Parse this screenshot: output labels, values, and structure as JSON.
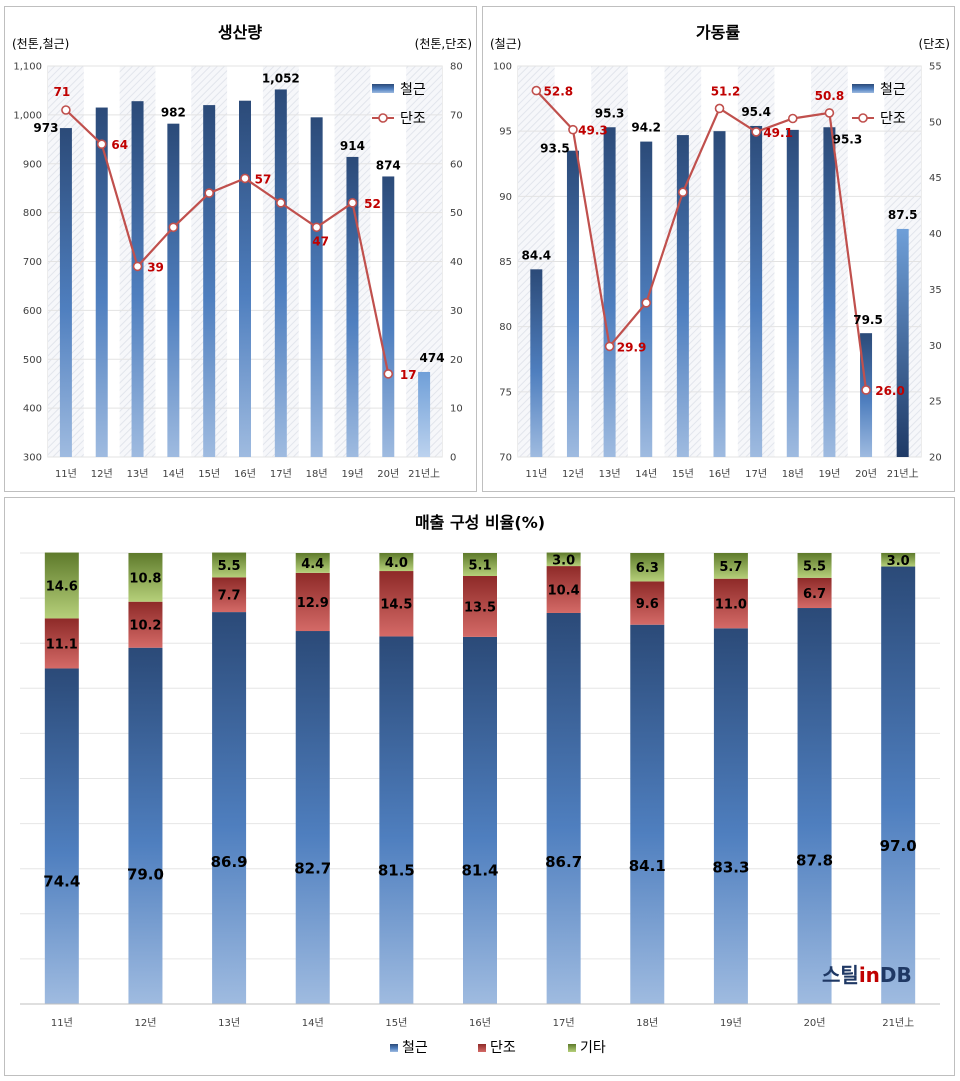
{
  "colors": {
    "steel": "#3d6496",
    "forging": "#c0504d",
    "other": "#9bbb59",
    "line": "#c0504d"
  },
  "chart_data": [
    {
      "type": "bar+line",
      "title": "생산량",
      "ylabel_left": "(천톤,철근)",
      "ylabel_right": "(천톤,단조)",
      "categories": [
        "11년",
        "12년",
        "13년",
        "14년",
        "15년",
        "16년",
        "17년",
        "18년",
        "19년",
        "20년",
        "21년上"
      ],
      "ylim_left": [
        300,
        1100
      ],
      "ylim_right": [
        0,
        80
      ],
      "yticks_left": [
        "300",
        "400",
        "500",
        "600",
        "700",
        "800",
        "900",
        "1,000",
        "1,100"
      ],
      "yticks_right": [
        "0",
        "10",
        "20",
        "30",
        "40",
        "50",
        "60",
        "70",
        "80"
      ],
      "series": [
        {
          "name": "철근",
          "kind": "bar",
          "axis": "left",
          "values": [
            973,
            1015,
            1028,
            982,
            1020,
            1029,
            1052,
            995,
            914,
            874,
            474
          ],
          "labels": [
            "973",
            "",
            "",
            "982",
            "",
            "",
            "1,052",
            "",
            "914",
            "874",
            "474"
          ]
        },
        {
          "name": "단조",
          "kind": "line",
          "axis": "right",
          "values": [
            71,
            64,
            39,
            47,
            54,
            57,
            52,
            47,
            52,
            17,
            null
          ],
          "labels": [
            "71",
            "64",
            "39",
            "",
            "",
            "57",
            "",
            "47",
            "52",
            "17",
            ""
          ]
        }
      ],
      "legend": "top-right"
    },
    {
      "type": "bar+line",
      "title": "가동률",
      "ylabel_left": "(철근)",
      "ylabel_right": "(단조)",
      "categories": [
        "11년",
        "12년",
        "13년",
        "14년",
        "15년",
        "16년",
        "17년",
        "18년",
        "19년",
        "20년",
        "21년上"
      ],
      "ylim_left": [
        70,
        100
      ],
      "ylim_right": [
        20,
        55
      ],
      "yticks_left": [
        "70",
        "75",
        "80",
        "85",
        "90",
        "95",
        "100"
      ],
      "yticks_right": [
        "20",
        "25",
        "30",
        "35",
        "40",
        "45",
        "50",
        "55"
      ],
      "series": [
        {
          "name": "철근",
          "kind": "bar",
          "axis": "left",
          "values": [
            84.4,
            93.5,
            95.3,
            94.2,
            94.7,
            95.0,
            95.4,
            95.1,
            95.3,
            79.5,
            87.5
          ],
          "labels": [
            "84.4",
            "93.5",
            "95.3",
            "94.2",
            "",
            "",
            "95.4",
            "",
            "95.3",
            "79.5",
            "87.5"
          ]
        },
        {
          "name": "단조",
          "kind": "line",
          "axis": "right",
          "values": [
            52.8,
            49.3,
            29.9,
            33.8,
            43.7,
            51.2,
            49.1,
            50.3,
            50.8,
            26.0,
            null
          ],
          "labels": [
            "52.8",
            "49.3",
            "29.9",
            "",
            "",
            "51.2",
            "49.1",
            "",
            "50.8",
            "26.0",
            ""
          ]
        }
      ],
      "legend": "top-right"
    },
    {
      "type": "stacked-bar",
      "title": "매출 구성 비율(%)",
      "categories": [
        "11년",
        "12년",
        "13년",
        "14년",
        "15년",
        "16년",
        "17년",
        "18년",
        "19년",
        "20년",
        "21년上"
      ],
      "ylim": [
        0,
        100
      ],
      "series": [
        {
          "name": "철근",
          "values": [
            74.4,
            79.0,
            86.9,
            82.7,
            81.5,
            81.4,
            86.7,
            84.1,
            83.3,
            87.8,
            97.0
          ],
          "labels": [
            "74.4",
            "79.0",
            "86.9",
            "82.7",
            "81.5",
            "81.4",
            "86.7",
            "84.1",
            "83.3",
            "87.8",
            "97.0"
          ]
        },
        {
          "name": "단조",
          "values": [
            11.1,
            10.2,
            7.7,
            12.9,
            14.5,
            13.5,
            10.4,
            9.6,
            11.0,
            6.7,
            0
          ],
          "labels": [
            "11.1",
            "10.2",
            "7.7",
            "12.9",
            "14.5",
            "13.5",
            "10.4",
            "9.6",
            "11.0",
            "6.7",
            ""
          ]
        },
        {
          "name": "기타",
          "values": [
            14.6,
            10.8,
            5.5,
            4.4,
            4.0,
            5.1,
            3.0,
            6.3,
            5.7,
            5.5,
            3.0
          ],
          "labels": [
            "14.6",
            "10.8",
            "5.5",
            "4.4",
            "4.0",
            "5.1",
            "3.0",
            "6.3",
            "5.7",
            "5.5",
            "3.0"
          ]
        }
      ],
      "legend": "bottom"
    }
  ],
  "logo": {
    "part1": "스틸",
    "part2": "in",
    "part3": "DB"
  }
}
